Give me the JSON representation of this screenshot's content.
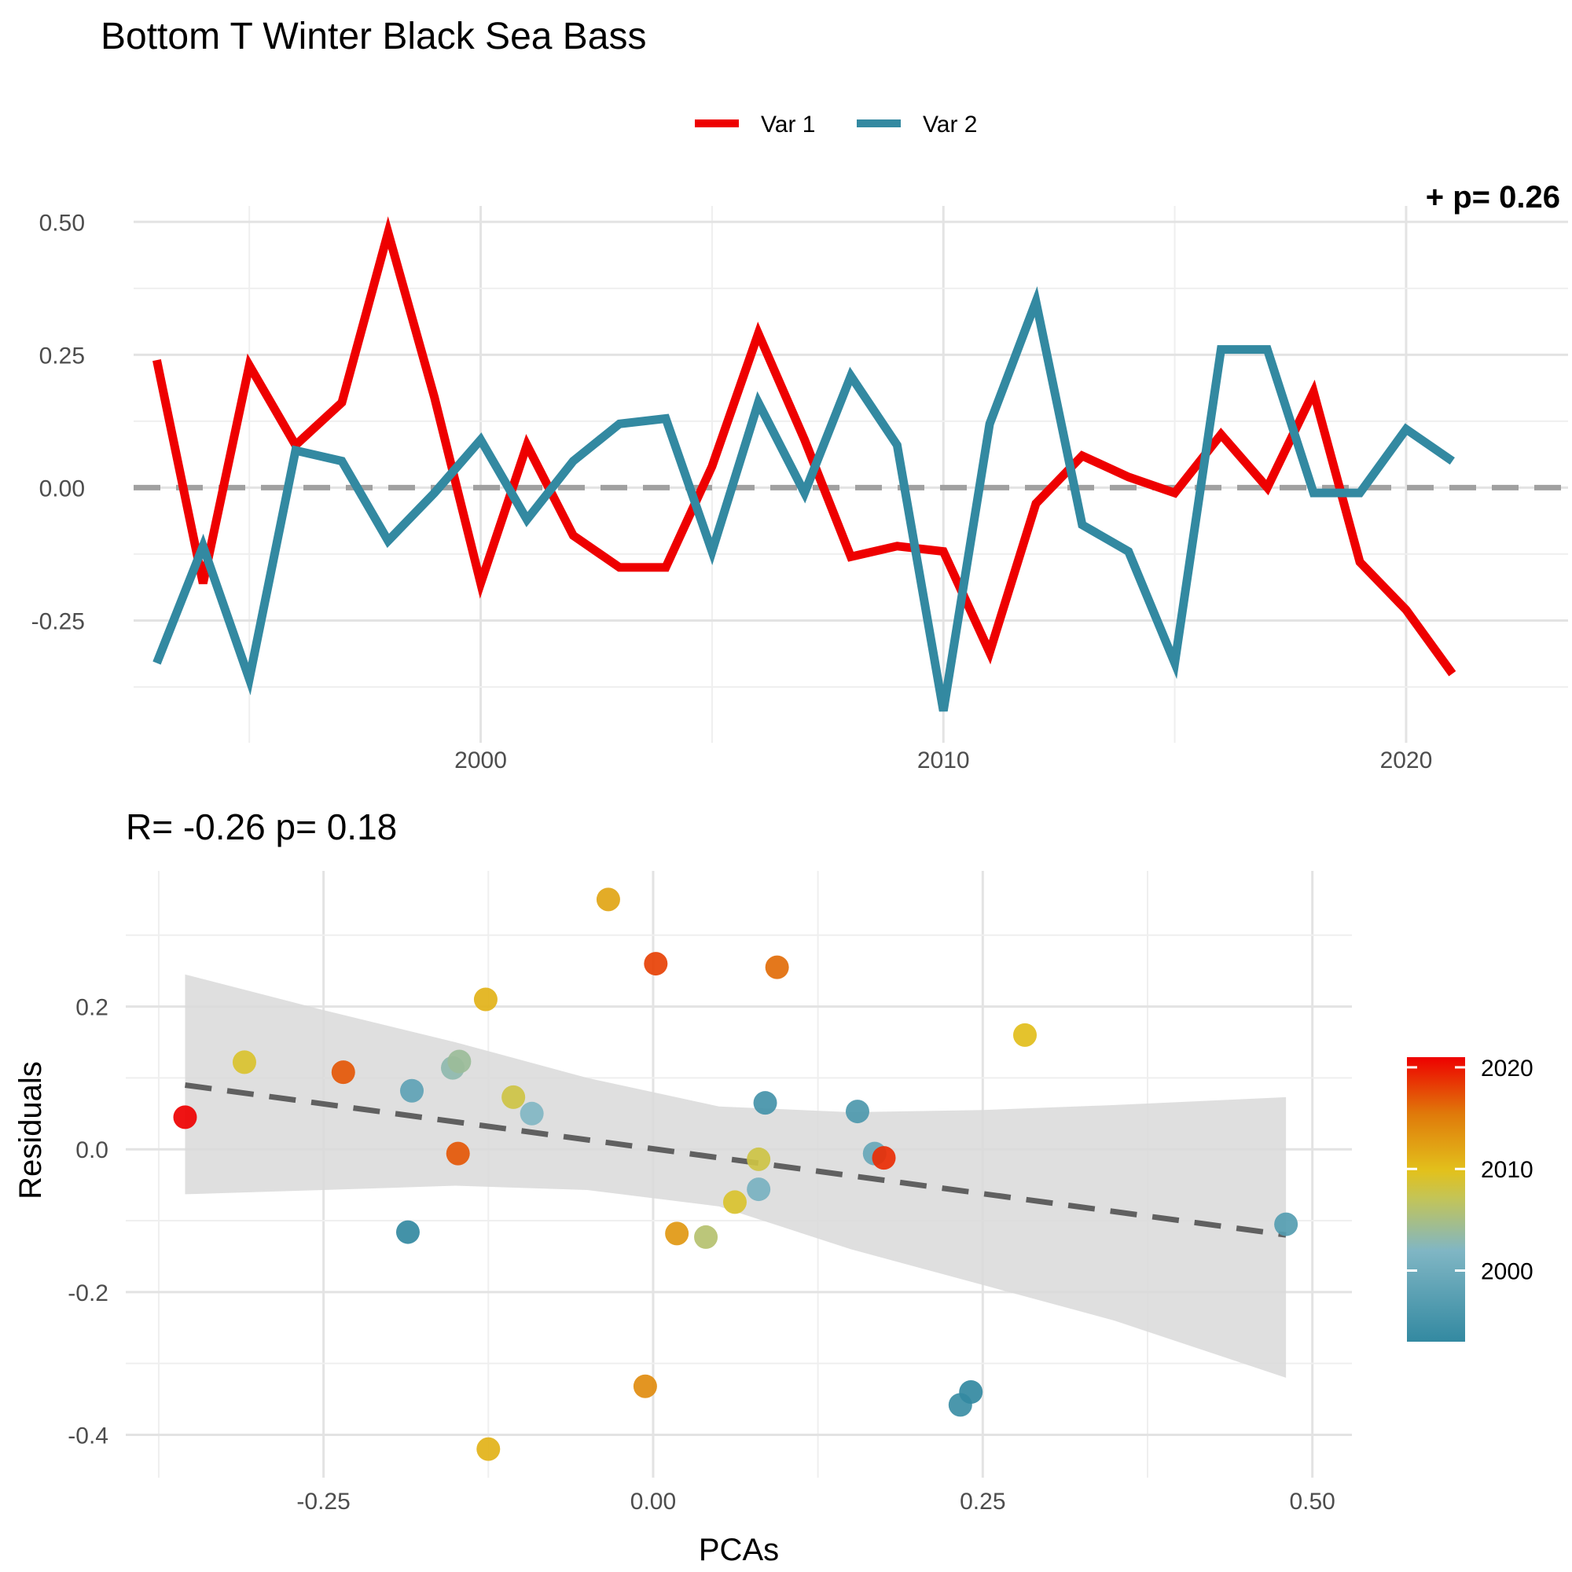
{
  "title": "Bottom T Winter Black Sea Bass",
  "legend": {
    "items": [
      {
        "label": "Var 1",
        "color": "#ee0000"
      },
      {
        "label": "Var 2",
        "color": "#3389a1"
      }
    ]
  },
  "top_corner_text": "+ p= 0.26",
  "colorbar": {
    "ticks": [
      {
        "label": "2020",
        "value": 2020
      },
      {
        "label": "2010",
        "value": 2010
      },
      {
        "label": "2000",
        "value": 2000
      }
    ],
    "range": [
      1993,
      2021
    ]
  },
  "chart_data": [
    {
      "type": "line",
      "xlabel": "",
      "ylabel": "",
      "x_ticks": [
        {
          "label": "2000",
          "value": 2000
        },
        {
          "label": "2010",
          "value": 2010
        },
        {
          "label": "2020",
          "value": 2020
        }
      ],
      "y_ticks": [
        {
          "label": "0.50",
          "value": 0.5
        },
        {
          "label": "0.25",
          "value": 0.25
        },
        {
          "label": "0.00",
          "value": 0
        },
        {
          "label": "-0.25",
          "value": -0.25
        }
      ],
      "xlim": [
        1992.5,
        2023.5
      ],
      "ylim": [
        -0.48,
        0.53
      ],
      "reference_line": {
        "y": 0,
        "style": "dashed",
        "color": "#a0a0a0"
      },
      "x": [
        1993,
        1994,
        1995,
        1996,
        1997,
        1998,
        1999,
        2000,
        2001,
        2002,
        2003,
        2004,
        2005,
        2006,
        2007,
        2008,
        2009,
        2010,
        2011,
        2012,
        2013,
        2014,
        2015,
        2016,
        2017,
        2018,
        2019,
        2020,
        2021
      ],
      "series": [
        {
          "name": "Var 1",
          "color": "#ee0000",
          "values": [
            0.24,
            -0.18,
            0.23,
            0.08,
            0.16,
            0.48,
            0.17,
            -0.18,
            0.08,
            -0.09,
            -0.15,
            -0.15,
            0.04,
            0.29,
            0.09,
            -0.13,
            -0.11,
            -0.12,
            -0.31,
            -0.03,
            0.06,
            0.02,
            -0.01,
            0.1,
            0.0,
            0.18,
            -0.14,
            -0.23,
            -0.35
          ]
        },
        {
          "name": "Var 2",
          "color": "#3389a1",
          "values": [
            -0.33,
            -0.11,
            -0.36,
            0.07,
            0.05,
            -0.1,
            -0.01,
            0.09,
            -0.06,
            0.05,
            0.12,
            0.13,
            -0.12,
            0.16,
            -0.01,
            0.21,
            0.08,
            -0.42,
            0.12,
            0.35,
            -0.07,
            -0.12,
            -0.33,
            0.26,
            0.26,
            -0.01,
            -0.01,
            0.11,
            0.05
          ]
        }
      ]
    },
    {
      "type": "scatter",
      "title": "R= -0.26  p= 0.18",
      "xlabel": "PCAs",
      "ylabel": "Residuals",
      "x_ticks": [
        {
          "label": "-0.25",
          "value": -0.25
        },
        {
          "label": "0.00",
          "value": 0
        },
        {
          "label": "0.25",
          "value": 0.25
        },
        {
          "label": "0.50",
          "value": 0.5
        }
      ],
      "y_ticks": [
        {
          "label": "0.2",
          "value": 0.2
        },
        {
          "label": "0.0",
          "value": 0
        },
        {
          "label": "-0.2",
          "value": -0.2
        },
        {
          "label": "-0.4",
          "value": -0.4
        }
      ],
      "xlim": [
        -0.4,
        0.53
      ],
      "ylim": [
        -0.46,
        0.39
      ],
      "fit_line": {
        "x": [
          -0.355,
          0.48
        ],
        "y": [
          0.09,
          -0.12
        ],
        "style": "dashed",
        "color": "#606060"
      },
      "confidence_band": {
        "x": [
          -0.355,
          -0.25,
          -0.15,
          -0.05,
          0.05,
          0.15,
          0.25,
          0.35,
          0.48
        ],
        "upper": [
          0.245,
          0.195,
          0.15,
          0.1,
          0.06,
          0.052,
          0.055,
          0.062,
          0.073
        ],
        "lower": [
          -0.063,
          -0.057,
          -0.051,
          -0.057,
          -0.08,
          -0.14,
          -0.19,
          -0.24,
          -0.32
        ]
      },
      "points": [
        {
          "x": -0.355,
          "y": 0.045,
          "year": 2021
        },
        {
          "x": -0.31,
          "y": 0.122,
          "year": 2009
        },
        {
          "x": -0.235,
          "y": 0.108,
          "year": 2017
        },
        {
          "x": -0.183,
          "y": 0.082,
          "year": 1998
        },
        {
          "x": -0.186,
          "y": -0.116,
          "year": 1993
        },
        {
          "x": -0.152,
          "y": 0.114,
          "year": 2003
        },
        {
          "x": -0.147,
          "y": 0.123,
          "year": 2004
        },
        {
          "x": -0.148,
          "y": -0.006,
          "year": 2017
        },
        {
          "x": -0.127,
          "y": 0.21,
          "year": 2011
        },
        {
          "x": -0.125,
          "y": -0.42,
          "year": 2011
        },
        {
          "x": -0.106,
          "y": 0.073,
          "year": 2008
        },
        {
          "x": -0.092,
          "y": 0.05,
          "year": 2002
        },
        {
          "x": -0.034,
          "y": 0.35,
          "year": 2012
        },
        {
          "x": -0.006,
          "y": -0.332,
          "year": 2014
        },
        {
          "x": 0.002,
          "y": 0.26,
          "year": 2018
        },
        {
          "x": 0.018,
          "y": -0.118,
          "year": 2013
        },
        {
          "x": 0.04,
          "y": -0.123,
          "year": 2006
        },
        {
          "x": 0.062,
          "y": -0.074,
          "year": 2009
        },
        {
          "x": 0.08,
          "y": -0.014,
          "year": 2008
        },
        {
          "x": 0.08,
          "y": -0.056,
          "year": 2001
        },
        {
          "x": 0.085,
          "y": 0.065,
          "year": 1995
        },
        {
          "x": 0.094,
          "y": 0.255,
          "year": 2016
        },
        {
          "x": 0.155,
          "y": 0.053,
          "year": 1996
        },
        {
          "x": 0.168,
          "y": -0.006,
          "year": 1999
        },
        {
          "x": 0.175,
          "y": -0.012,
          "year": 2019
        },
        {
          "x": 0.233,
          "y": -0.358,
          "year": 1994
        },
        {
          "x": 0.241,
          "y": -0.34,
          "year": 1993
        },
        {
          "x": 0.282,
          "y": 0.16,
          "year": 2010
        },
        {
          "x": 0.48,
          "y": -0.105,
          "year": 1997
        }
      ]
    }
  ]
}
